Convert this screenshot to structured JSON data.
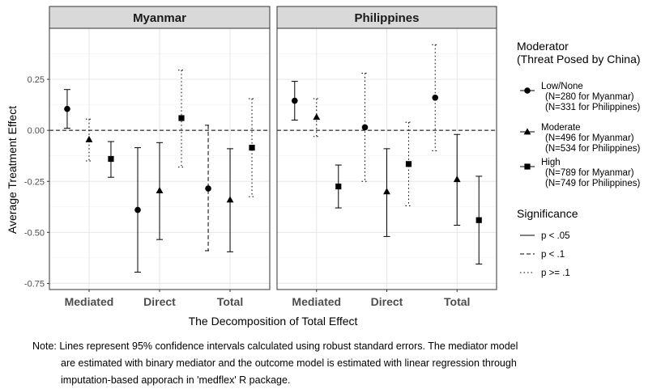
{
  "chart_data": {
    "type": "scatter",
    "subtype": "point-range (estimates with 95% confidence intervals)",
    "panels": [
      "Myanmar",
      "Philippines"
    ],
    "categories": [
      "Mediated",
      "Direct",
      "Total"
    ],
    "xlabel": "The Decomposition of Total Effect",
    "ylabel": "Average Treatment Effect",
    "ylim": [
      -0.75,
      0.5
    ],
    "yticks": [
      "0.25",
      "0.00",
      "-0.25",
      "-0.50",
      "-0.75"
    ],
    "reference_line": 0,
    "grid": true,
    "legend_position": "right",
    "moderator_legend": {
      "title_line1": "Moderator",
      "title_line2": "(Threat Posed by China)",
      "items": [
        {
          "key": "low",
          "shape": "circle",
          "line1": "Low/None",
          "line2": "(N=280 for Myanmar)",
          "line3": "(N=331 for Philippines)"
        },
        {
          "key": "moderate",
          "shape": "triangle",
          "line1": "Moderate",
          "line2": "(N=496 for Myanmar)",
          "line3": "(N=534 for Philippines)"
        },
        {
          "key": "high",
          "shape": "square",
          "line1": "High",
          "line2": "(N=789 for Myanmar)",
          "line3": "(N=749 for Philippines)"
        }
      ]
    },
    "significance_legend": {
      "title": "Significance",
      "items": [
        {
          "key": "p05",
          "dash": "solid",
          "label": "p < .05"
        },
        {
          "key": "p1",
          "dash": "dashed",
          "label": "p < .1"
        },
        {
          "key": "ns",
          "dash": "dotted",
          "label": "p >= .1"
        }
      ]
    },
    "series": [
      {
        "panel": "Myanmar",
        "category": "Mediated",
        "moderator": "low",
        "estimate": 0.105,
        "lower": 0.01,
        "upper": 0.2,
        "significance": "p05"
      },
      {
        "panel": "Myanmar",
        "category": "Mediated",
        "moderator": "moderate",
        "estimate": -0.045,
        "lower": -0.15,
        "upper": 0.055,
        "significance": "ns"
      },
      {
        "panel": "Myanmar",
        "category": "Mediated",
        "moderator": "high",
        "estimate": -0.14,
        "lower": -0.23,
        "upper": -0.055,
        "significance": "p05"
      },
      {
        "panel": "Myanmar",
        "category": "Direct",
        "moderator": "low",
        "estimate": -0.39,
        "lower": -0.695,
        "upper": -0.085,
        "significance": "p05"
      },
      {
        "panel": "Myanmar",
        "category": "Direct",
        "moderator": "moderate",
        "estimate": -0.295,
        "lower": -0.535,
        "upper": -0.06,
        "significance": "p05"
      },
      {
        "panel": "Myanmar",
        "category": "Direct",
        "moderator": "high",
        "estimate": 0.06,
        "lower": -0.18,
        "upper": 0.295,
        "significance": "ns"
      },
      {
        "panel": "Myanmar",
        "category": "Total",
        "moderator": "low",
        "estimate": -0.285,
        "lower": -0.59,
        "upper": 0.025,
        "significance": "p1"
      },
      {
        "panel": "Myanmar",
        "category": "Total",
        "moderator": "moderate",
        "estimate": -0.34,
        "lower": -0.595,
        "upper": -0.09,
        "significance": "p05"
      },
      {
        "panel": "Myanmar",
        "category": "Total",
        "moderator": "high",
        "estimate": -0.085,
        "lower": -0.325,
        "upper": 0.155,
        "significance": "ns"
      },
      {
        "panel": "Philippines",
        "category": "Mediated",
        "moderator": "low",
        "estimate": 0.145,
        "lower": 0.05,
        "upper": 0.24,
        "significance": "p05"
      },
      {
        "panel": "Philippines",
        "category": "Mediated",
        "moderator": "moderate",
        "estimate": 0.065,
        "lower": -0.03,
        "upper": 0.155,
        "significance": "ns"
      },
      {
        "panel": "Philippines",
        "category": "Mediated",
        "moderator": "high",
        "estimate": -0.275,
        "lower": -0.38,
        "upper": -0.17,
        "significance": "p05"
      },
      {
        "panel": "Philippines",
        "category": "Direct",
        "moderator": "low",
        "estimate": 0.015,
        "lower": -0.25,
        "upper": 0.28,
        "significance": "ns"
      },
      {
        "panel": "Philippines",
        "category": "Direct",
        "moderator": "moderate",
        "estimate": -0.3,
        "lower": -0.52,
        "upper": -0.09,
        "significance": "p05"
      },
      {
        "panel": "Philippines",
        "category": "Direct",
        "moderator": "high",
        "estimate": -0.165,
        "lower": -0.37,
        "upper": 0.04,
        "significance": "ns"
      },
      {
        "panel": "Philippines",
        "category": "Total",
        "moderator": "low",
        "estimate": 0.16,
        "lower": -0.1,
        "upper": 0.42,
        "significance": "ns"
      },
      {
        "panel": "Philippines",
        "category": "Total",
        "moderator": "moderate",
        "estimate": -0.24,
        "lower": -0.465,
        "upper": -0.02,
        "significance": "p05"
      },
      {
        "panel": "Philippines",
        "category": "Total",
        "moderator": "high",
        "estimate": -0.44,
        "lower": -0.655,
        "upper": -0.225,
        "significance": "p05"
      }
    ]
  },
  "note": {
    "line1": "Note: Lines represent 95% confidence intervals calculated using robust standard errors. The mediator model",
    "line2": "are estimated with binary mediator and the outcome model is estimated with linear regression through",
    "line3": "imputation-based apporach in 'medflex' R package."
  }
}
